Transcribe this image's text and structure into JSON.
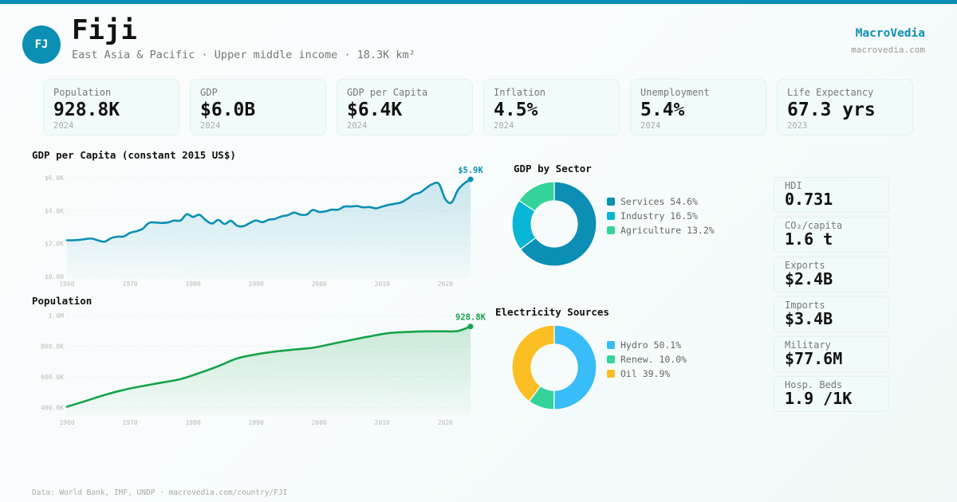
{
  "header": {
    "country_code": "FJ",
    "country_name": "Fiji",
    "subtitle": "East Asia & Pacific · Upper middle income · 18.3K km²",
    "brand": "MacroVedia",
    "brand_url": "macrovedia.com",
    "accent_color": "#0b8fb4"
  },
  "kpis": [
    {
      "label": "Population",
      "value": "928.8K",
      "year": "2024"
    },
    {
      "label": "GDP",
      "value": "$6.0B",
      "year": "2024"
    },
    {
      "label": "GDP per Capita",
      "value": "$6.4K",
      "year": "2024"
    },
    {
      "label": "Inflation",
      "value": "4.5%",
      "year": "2024"
    },
    {
      "label": "Unemployment",
      "value": "5.4%",
      "year": "2024"
    },
    {
      "label": "Life Expectancy",
      "value": "67.3 yrs",
      "year": "2023"
    }
  ],
  "side_stats": [
    {
      "label": "HDI",
      "value": "0.731"
    },
    {
      "label": "CO₂/capita",
      "value": "1.6 t"
    },
    {
      "label": "Exports",
      "value": "$2.4B"
    },
    {
      "label": "Imports",
      "value": "$3.4B"
    },
    {
      "label": "Military",
      "value": "$77.6M"
    },
    {
      "label": "Hosp. Beds",
      "value": "1.9 /1K"
    }
  ],
  "footer": "Data: World Bank, IMF, UNDP · macrovedia.com/country/FJI",
  "chart_data": [
    {
      "id": "gdp_per_capita",
      "type": "area",
      "title": "GDP per Capita (constant 2015 US$)",
      "color": "#0b8fb4",
      "xlabel": "",
      "ylabel": "",
      "xlim": [
        1960,
        2024
      ],
      "ylim": [
        0,
        6000
      ],
      "yticks": [
        0,
        2000,
        4000,
        6000
      ],
      "ytick_labels": [
        "$0.00",
        "$2.0K",
        "$4.0K",
        "$6.0K"
      ],
      "xticks": [
        1960,
        1970,
        1980,
        1990,
        2000,
        2010,
        2020
      ],
      "xtick_labels": [
        "1960",
        "1970",
        "1980",
        "1990",
        "2000",
        "2010",
        "2020"
      ],
      "grid": true,
      "end_label": "$5.9K",
      "x": [
        1960,
        1961,
        1962,
        1963,
        1964,
        1965,
        1966,
        1967,
        1968,
        1969,
        1970,
        1971,
        1972,
        1973,
        1974,
        1975,
        1976,
        1977,
        1978,
        1979,
        1980,
        1981,
        1982,
        1983,
        1984,
        1985,
        1986,
        1987,
        1988,
        1989,
        1990,
        1991,
        1992,
        1993,
        1994,
        1995,
        1996,
        1997,
        1998,
        1999,
        2000,
        2001,
        2002,
        2003,
        2004,
        2005,
        2006,
        2007,
        2008,
        2009,
        2010,
        2011,
        2012,
        2013,
        2014,
        2015,
        2016,
        2017,
        2018,
        2019,
        2020,
        2021,
        2022,
        2023,
        2024
      ],
      "values": [
        2200,
        2200,
        2220,
        2280,
        2300,
        2180,
        2120,
        2330,
        2420,
        2430,
        2650,
        2750,
        2900,
        3250,
        3280,
        3250,
        3280,
        3400,
        3400,
        3780,
        3620,
        3750,
        3420,
        3220,
        3430,
        3190,
        3380,
        3080,
        3060,
        3250,
        3400,
        3300,
        3450,
        3500,
        3650,
        3720,
        3880,
        3760,
        3760,
        4040,
        3920,
        3960,
        4060,
        4060,
        4250,
        4250,
        4280,
        4200,
        4220,
        4140,
        4250,
        4350,
        4420,
        4500,
        4720,
        4980,
        5100,
        5380,
        5620,
        5620,
        4700,
        4500,
        5250,
        5650,
        5900
      ]
    },
    {
      "id": "population",
      "type": "area",
      "title": "Population",
      "color": "#16a34a",
      "xlabel": "",
      "ylabel": "",
      "xlim": [
        1960,
        2024
      ],
      "ylim": [
        350000,
        1000000
      ],
      "yticks": [
        400000,
        600000,
        800000,
        1000000
      ],
      "ytick_labels": [
        "400.0K",
        "600.0K",
        "800.0K",
        "1.0M"
      ],
      "xticks": [
        1960,
        1970,
        1980,
        1990,
        2000,
        2010,
        2020
      ],
      "xtick_labels": [
        "1960",
        "1970",
        "1980",
        "1990",
        "2000",
        "2010",
        "2020"
      ],
      "grid": true,
      "end_label": "928.8K",
      "x": [
        1960,
        1963,
        1966,
        1969,
        1972,
        1975,
        1978,
        1981,
        1984,
        1987,
        1990,
        1993,
        1996,
        1999,
        2002,
        2005,
        2008,
        2011,
        2014,
        2017,
        2020,
        2022,
        2024
      ],
      "values": [
        405000,
        443000,
        482000,
        515000,
        540000,
        562000,
        585000,
        625000,
        670000,
        720000,
        747000,
        765000,
        778000,
        790000,
        815000,
        840000,
        864000,
        885000,
        893000,
        897000,
        897000,
        899000,
        928800
      ]
    },
    {
      "id": "gdp_by_sector",
      "type": "pie",
      "title": "GDP by Sector",
      "categories": [
        "Services",
        "Industry",
        "Agriculture"
      ],
      "values": [
        54.6,
        16.5,
        13.2
      ],
      "legend_labels": [
        "Services 54.6%",
        "Industry 16.5%",
        "Agriculture 13.2%"
      ],
      "colors": [
        "#0b8fb4",
        "#06b6d4",
        "#34d399"
      ],
      "legend": "right"
    },
    {
      "id": "electricity_sources",
      "type": "pie",
      "title": "Electricity Sources",
      "categories": [
        "Hydro",
        "Renew.",
        "Oil"
      ],
      "values": [
        50.1,
        10.0,
        39.9
      ],
      "legend_labels": [
        "Hydro 50.1%",
        "Renew. 10.0%",
        "Oil 39.9%"
      ],
      "colors": [
        "#38bdf8",
        "#34d399",
        "#fbbf24"
      ],
      "legend": "right"
    }
  ]
}
